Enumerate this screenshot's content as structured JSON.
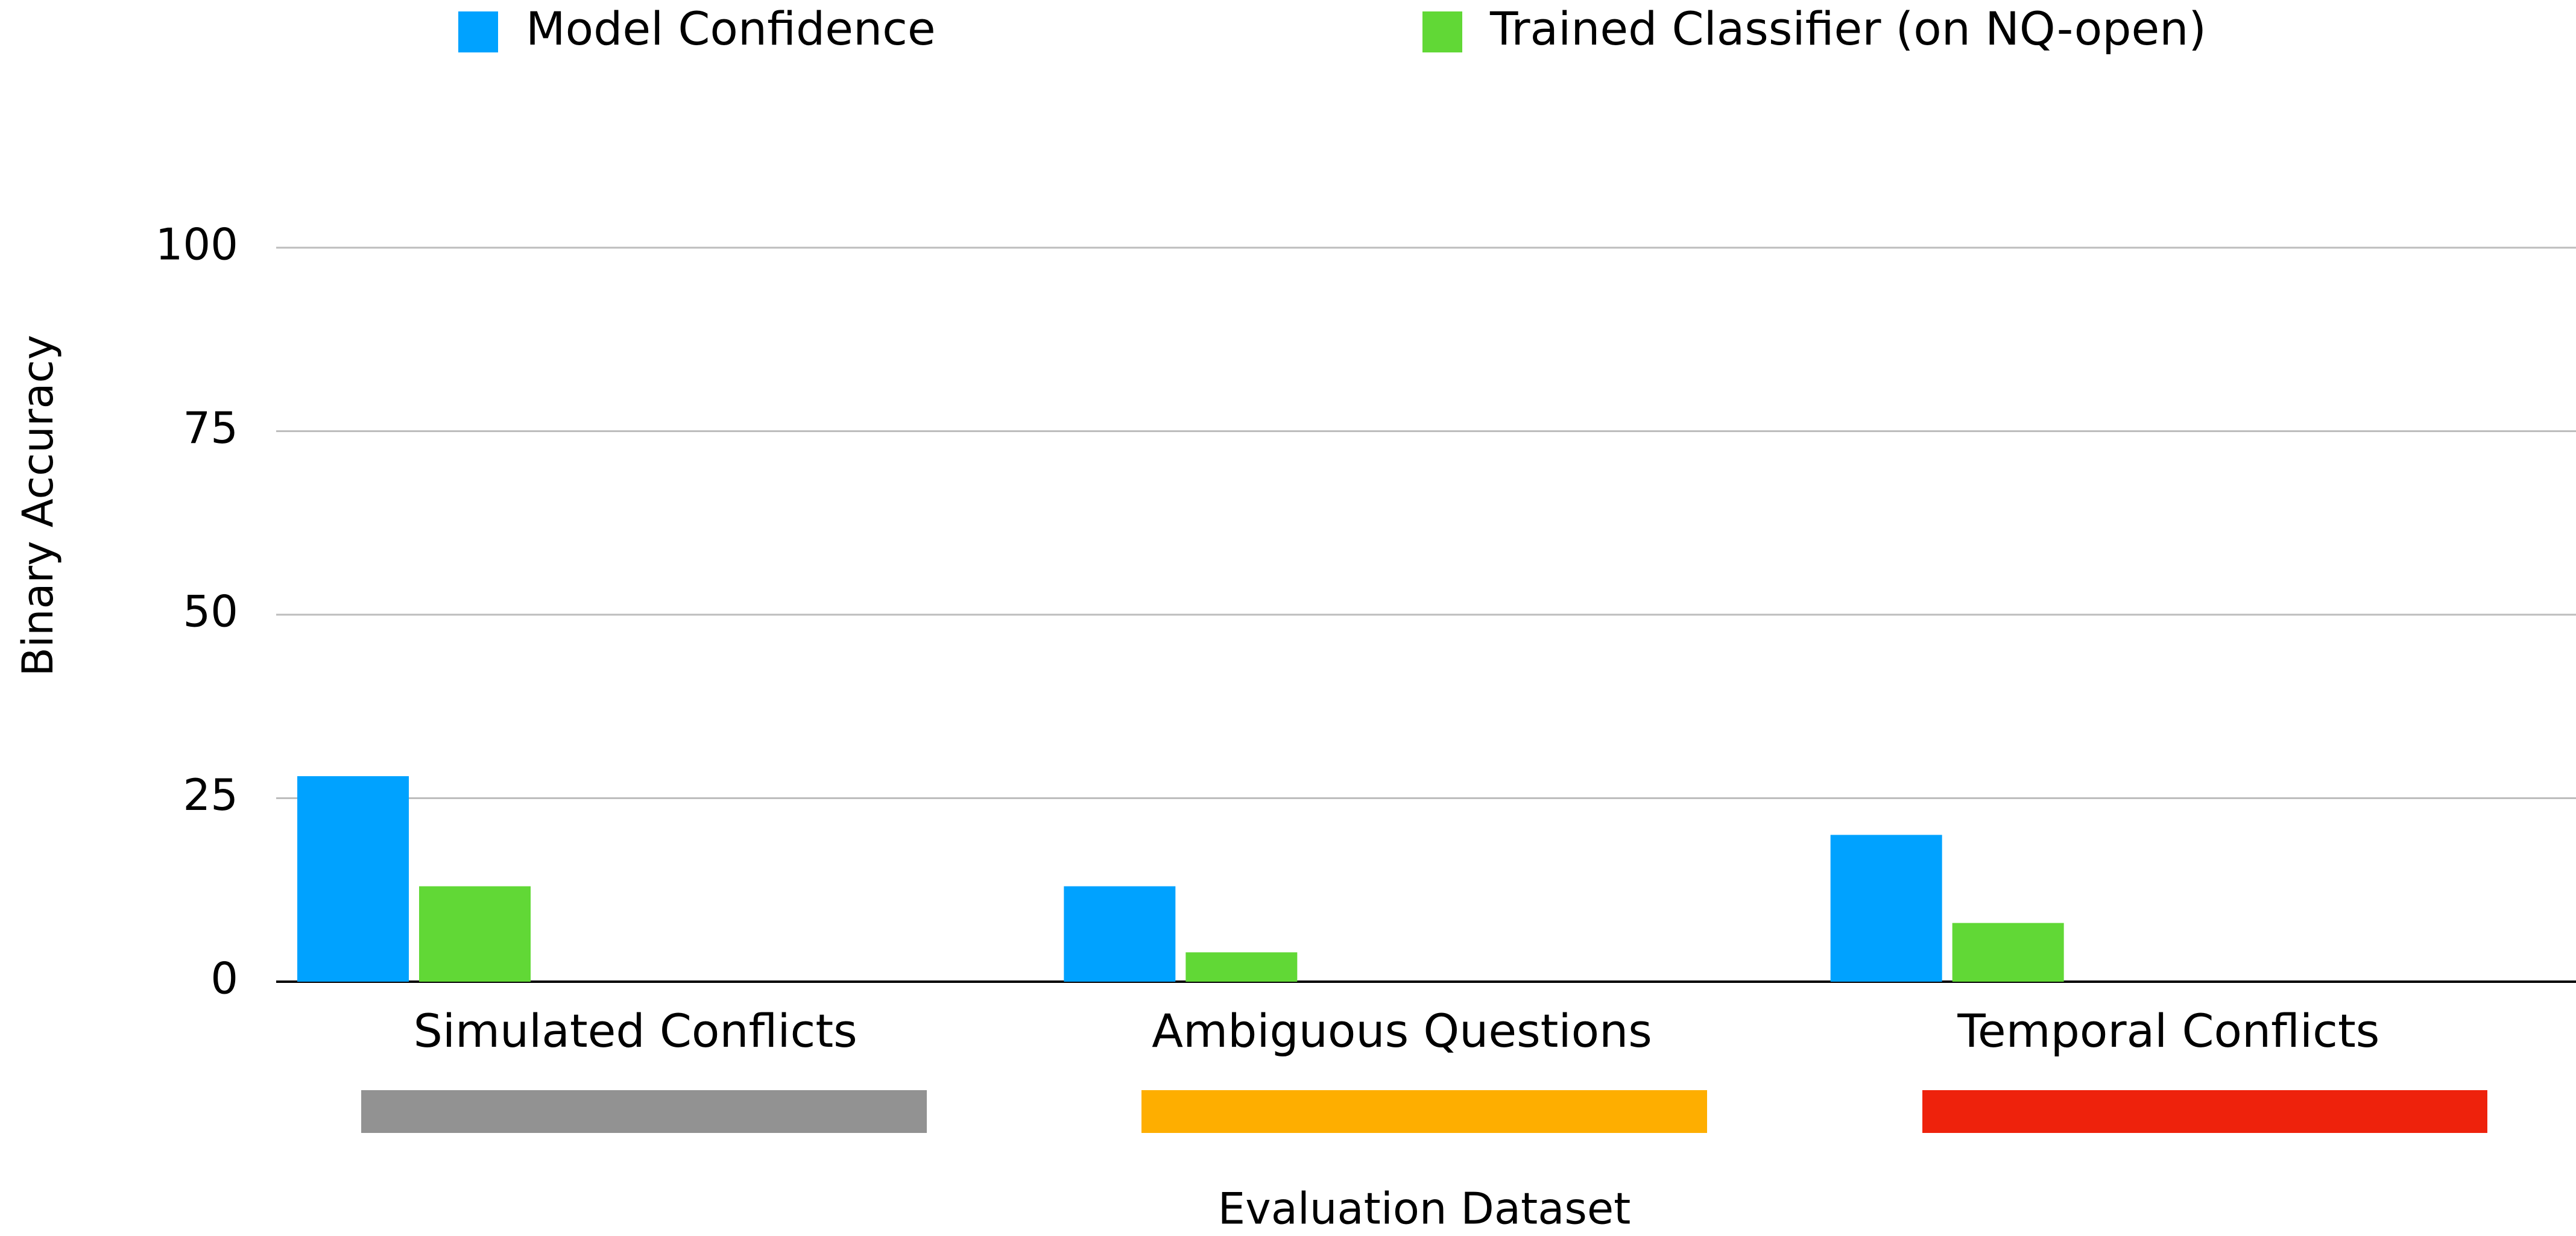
{
  "chart_data": {
    "type": "bar",
    "ylabel": "Binary Accuracy",
    "xlabel": "Evaluation Dataset",
    "categories": [
      "Simulated Conflicts",
      "Ambiguous Questions",
      "Temporal Conflicts"
    ],
    "series": [
      {
        "name": "Model Confidence",
        "color": "#00a2ff",
        "values": [
          28,
          13,
          20
        ]
      },
      {
        "name": "Trained Classifier (on NQ-open)",
        "color": "#61d836",
        "values": [
          13,
          4,
          8
        ]
      }
    ],
    "ylim": [
      0,
      100
    ],
    "yticks": [
      0,
      25,
      50,
      75,
      100
    ],
    "grid": true,
    "legend": "top"
  }
}
